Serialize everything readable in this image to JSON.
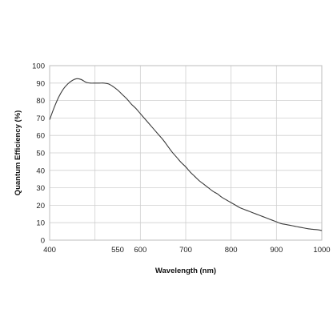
{
  "chart_data": {
    "type": "line",
    "title": "",
    "xlabel": "Wavelength (nm)",
    "ylabel": "Quantum Efficiency (%)",
    "xlim": [
      400,
      1000
    ],
    "ylim": [
      0,
      100
    ],
    "x_ticks": [
      400,
      550,
      600,
      700,
      800,
      900,
      1000
    ],
    "x_gridlines": [
      500,
      600,
      700,
      800,
      900
    ],
    "y_ticks": [
      0,
      10,
      20,
      30,
      40,
      50,
      60,
      70,
      80,
      90,
      100
    ],
    "grid": true,
    "legend": "none",
    "series": [
      {
        "color": "#3a3a3a",
        "x": [
          400,
          410,
          420,
          430,
          440,
          450,
          460,
          470,
          480,
          490,
          500,
          510,
          520,
          530,
          540,
          550,
          560,
          570,
          580,
          590,
          600,
          610,
          620,
          630,
          640,
          650,
          660,
          670,
          680,
          690,
          700,
          710,
          720,
          730,
          740,
          750,
          760,
          770,
          780,
          790,
          800,
          810,
          820,
          830,
          840,
          850,
          860,
          870,
          880,
          890,
          900,
          910,
          920,
          930,
          940,
          950,
          960,
          970,
          980,
          990,
          1000
        ],
        "y": [
          69,
          76,
          82,
          86.5,
          89.5,
          91.5,
          92.5,
          92,
          90.5,
          90,
          90,
          90,
          90,
          89.5,
          88,
          86,
          83.5,
          81,
          78,
          75.5,
          72.5,
          69.5,
          66.5,
          63.5,
          60.5,
          57.5,
          54,
          50.5,
          47.5,
          44.5,
          42,
          39,
          36.5,
          34,
          32,
          30,
          28,
          26.5,
          24.5,
          23,
          21.5,
          20,
          18.5,
          17.5,
          16.5,
          15.5,
          14.5,
          13.5,
          12.5,
          11.5,
          10.5,
          9.5,
          9,
          8.5,
          8,
          7.5,
          7,
          6.5,
          6.2,
          6,
          5.5
        ]
      }
    ]
  }
}
